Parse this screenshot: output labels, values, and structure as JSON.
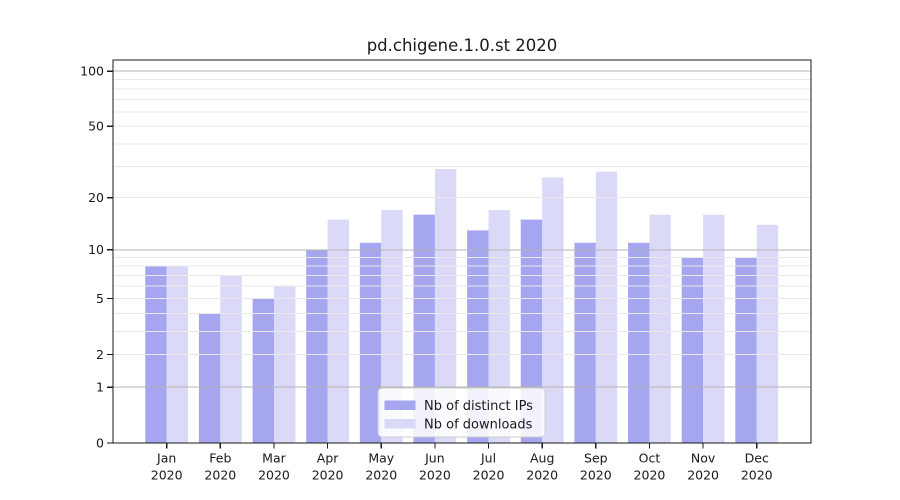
{
  "window": {
    "title": "pd.chigene.1.0.st 2020"
  },
  "chart_data": {
    "type": "bar",
    "title": "pd.chigene.1.0.st 2020",
    "categories": [
      "Jan",
      "Feb",
      "Mar",
      "Apr",
      "May",
      "Jun",
      "Jul",
      "Aug",
      "Sep",
      "Oct",
      "Nov",
      "Dec"
    ],
    "x_year_label": "2020",
    "series": [
      {
        "name": "Nb of distinct IPs",
        "color": "#a5a5f0",
        "values": [
          8,
          4,
          5,
          10,
          11,
          16,
          13,
          15,
          11,
          11,
          9,
          9
        ]
      },
      {
        "name": "Nb of downloads",
        "color": "#dadaf8",
        "values": [
          8,
          7,
          6,
          15,
          17,
          29,
          17,
          26,
          28,
          16,
          16,
          14
        ]
      }
    ],
    "yscale": "symlog",
    "yticks": [
      0,
      1,
      2,
      5,
      10,
      20,
      50,
      100
    ],
    "ylim": [
      0,
      115
    ],
    "grid": true,
    "legend_position": "lower center",
    "colors": {
      "grid_major": "#b4b4b4",
      "grid_minor": "#e9e9e9",
      "spine": "#1a1a1a",
      "text": "#1a1a1a",
      "legend_border": "#cccccc",
      "legend_bg": "#ffffff"
    }
  }
}
